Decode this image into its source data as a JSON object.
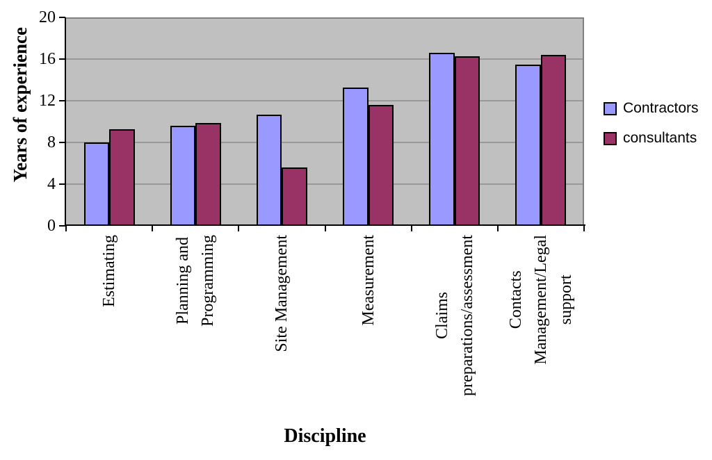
{
  "chart_data": {
    "type": "bar",
    "title": "",
    "ylabel": "Years of experience",
    "xlabel": "Discipline",
    "ylim": [
      0,
      20
    ],
    "yticks": [
      0,
      4,
      8,
      12,
      16,
      20
    ],
    "grid": true,
    "legend_position": "right",
    "plot_background": "#C0C0C0",
    "gridline_color": "#999999",
    "frame_color": "#808080",
    "axis_color": "#000000",
    "bar_border_color": "#000000",
    "categories": [
      "Estimating",
      "Planning and\nProgramming",
      "Site Management",
      "Measurement",
      "Claims\npreparations/assessment",
      "Contacts\nManagement/Legal\nsupport"
    ],
    "series": [
      {
        "name": "Contractors",
        "color": "#9999FF",
        "values": [
          8.0,
          9.6,
          10.7,
          13.3,
          16.6,
          15.5
        ]
      },
      {
        "name": "consultants",
        "color": "#993366",
        "values": [
          9.3,
          9.9,
          5.6,
          11.6,
          16.3,
          16.4
        ]
      }
    ]
  }
}
